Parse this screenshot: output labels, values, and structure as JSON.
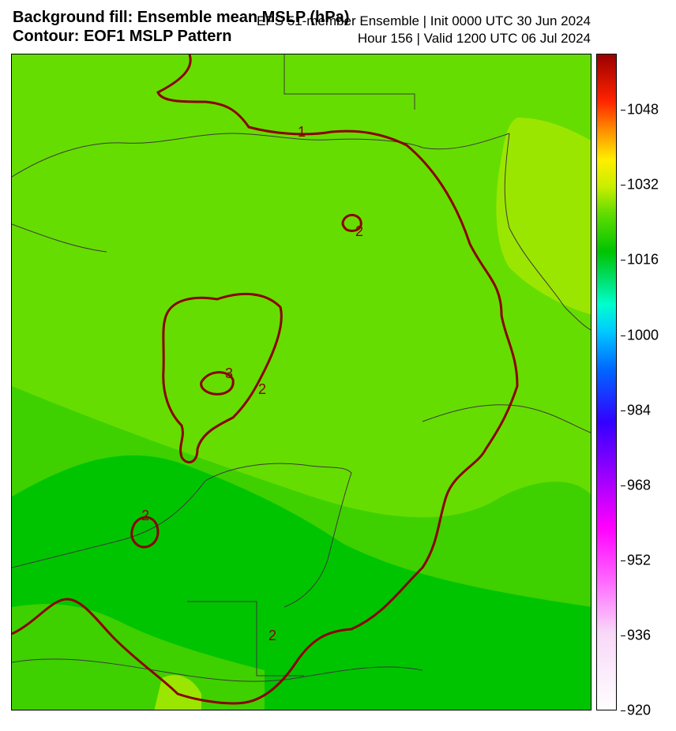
{
  "title": {
    "left_line1": "Background fill: Ensemble mean MSLP (hPa)",
    "left_line2": "Contour: EOF1 MSLP Pattern",
    "right_line1": "EPS 51-member Ensemble | Init 0000 UTC 30 Jun 2024",
    "right_line2": "Hour 156 | Valid 1200 UTC 06 Jul 2024"
  },
  "colorbar": {
    "min": 920,
    "max": 1060,
    "tick_labels": [
      "1048",
      "1032",
      "1016",
      "1000",
      "984",
      "968",
      "952",
      "936",
      "920"
    ]
  },
  "contour_labels": [
    "1",
    "2",
    "3",
    "2",
    "2",
    "2"
  ],
  "colors": {
    "contour": "#8b0000",
    "coastline": "#3a3a3a",
    "fill_light": "#9be600",
    "fill_mid": "#66dd00",
    "fill_green": "#3fd000",
    "fill_dark": "#00c400"
  }
}
